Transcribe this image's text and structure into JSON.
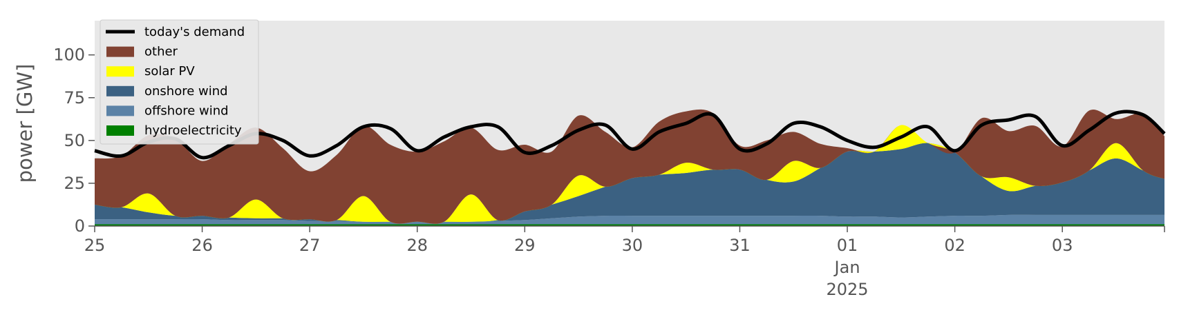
{
  "chart_data": {
    "type": "area",
    "ylabel": "power [GW]",
    "xlabel": "",
    "ylim": [
      0,
      120
    ],
    "xlim": [
      0,
      9.95
    ],
    "yticks": [
      0,
      25,
      50,
      75,
      100
    ],
    "xtick_labels": [
      {
        "x": 0,
        "lines": [
          "25"
        ]
      },
      {
        "x": 1,
        "lines": [
          "26"
        ]
      },
      {
        "x": 2,
        "lines": [
          "27"
        ]
      },
      {
        "x": 3,
        "lines": [
          "28"
        ]
      },
      {
        "x": 4,
        "lines": [
          "29"
        ]
      },
      {
        "x": 5,
        "lines": [
          "30"
        ]
      },
      {
        "x": 6,
        "lines": [
          "31"
        ]
      },
      {
        "x": 7,
        "lines": [
          "01",
          "Jan",
          "2025"
        ]
      },
      {
        "x": 8,
        "lines": [
          "02"
        ]
      },
      {
        "x": 9,
        "lines": [
          "03"
        ]
      }
    ],
    "x_unit": "days from 25 Dec 2024",
    "legend_position": "upper-left",
    "grid": false,
    "background": "#e8e8e8",
    "x": [
      0,
      0.25,
      0.5,
      0.75,
      1,
      1.25,
      1.5,
      1.75,
      2,
      2.25,
      2.5,
      2.75,
      3,
      3.25,
      3.5,
      3.75,
      4,
      4.25,
      4.5,
      4.75,
      5,
      5.25,
      5.5,
      5.75,
      6,
      6.25,
      6.5,
      6.75,
      7,
      7.25,
      7.5,
      7.75,
      8,
      8.25,
      8.5,
      8.75,
      9,
      9.25,
      9.5,
      9.75,
      9.95
    ],
    "series": [
      {
        "name": "hydroelectricity",
        "color": "#008000",
        "values": [
          1,
          1,
          1,
          1,
          1,
          1,
          1,
          1,
          1,
          1,
          1,
          1,
          1,
          1,
          1,
          1,
          1,
          1,
          1,
          1,
          1,
          1,
          1,
          1,
          1,
          1,
          1,
          1,
          1,
          1,
          1,
          1,
          1,
          1,
          1,
          1,
          1,
          1,
          1,
          1,
          1
        ]
      },
      {
        "name": "offshore wind",
        "color": "#5b82a6",
        "values": [
          3,
          3,
          3,
          3,
          3,
          2.5,
          2.5,
          2.5,
          2,
          2,
          1.5,
          1.5,
          1.5,
          1.5,
          1.5,
          2,
          2.5,
          3.5,
          4.5,
          5,
          5,
          5,
          5,
          5,
          5,
          5,
          5,
          5,
          4.5,
          4.5,
          4,
          4.5,
          5,
          5,
          5.5,
          5.5,
          5.5,
          5.5,
          5.5,
          5.5,
          5.5
        ]
      },
      {
        "name": "onshore wind",
        "color": "#3b6182",
        "values": [
          8.5,
          7,
          4,
          2,
          2,
          1.5,
          1,
          1,
          1,
          0.5,
          0,
          0,
          0,
          0,
          0,
          0.5,
          5,
          8,
          12,
          17,
          22,
          24,
          25,
          27,
          27,
          21,
          20,
          28,
          38,
          38,
          40,
          43,
          37,
          23,
          14,
          17,
          19,
          26,
          33,
          26,
          21
        ]
      },
      {
        "name": "solar PV",
        "color": "#ffff00",
        "values": [
          0,
          0,
          11,
          0,
          0,
          0,
          11,
          0,
          0,
          0,
          15,
          0,
          0,
          0,
          16,
          0,
          0,
          0,
          12,
          0,
          0,
          0,
          6,
          0,
          0,
          0,
          12,
          0,
          0,
          0,
          14,
          0,
          0,
          0,
          8,
          0,
          0,
          0,
          9,
          0,
          0
        ]
      },
      {
        "name": "other",
        "color": "#814232",
        "values": [
          27,
          30,
          34,
          45,
          32,
          43,
          42,
          41,
          28,
          38,
          41,
          45,
          41,
          47,
          39,
          41,
          39,
          31,
          35,
          32,
          18,
          31,
          30,
          33,
          14,
          23,
          17,
          14,
          2,
          0,
          0,
          0,
          0,
          34,
          27,
          35,
          21,
          35,
          14,
          33,
          25
        ]
      }
    ],
    "demand": {
      "name": "today's demand",
      "color": "#000000",
      "values": [
        44,
        41,
        49,
        51,
        40,
        47,
        54,
        50,
        41,
        47,
        58,
        57,
        44,
        52,
        58,
        58,
        43,
        47,
        56,
        59,
        45,
        55,
        60,
        65,
        45,
        48,
        60,
        58,
        50,
        46,
        52,
        58,
        44,
        59,
        62,
        64,
        47,
        56,
        66,
        65,
        54
      ]
    },
    "legend": [
      "today's demand",
      "other",
      "solar PV",
      "onshore wind",
      "offshore wind",
      "hydroelectricity"
    ]
  }
}
